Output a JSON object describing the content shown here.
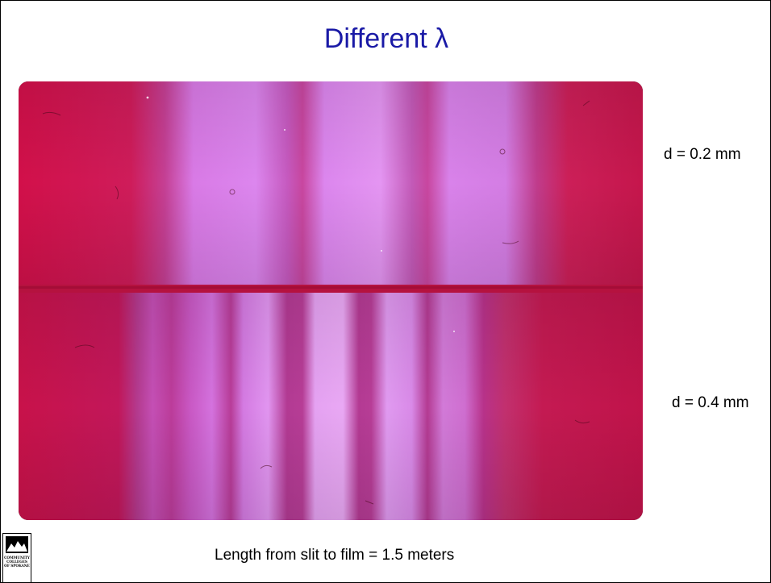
{
  "slide": {
    "title": "Different λ",
    "labels": {
      "top": "d = 0.2 mm",
      "bottom": "d = 0.4 mm"
    },
    "caption": "Length from slit to film = 1.5 meters",
    "logo": {
      "line1": "COMMUNITY",
      "line2": "COLLEGES",
      "line3": "OF SPOKANE"
    }
  },
  "colors": {
    "title": "#1a1aa6",
    "film_background": "#c8174f",
    "fringe": "#d57ae8",
    "fringe_core": "#e6a0f0"
  },
  "icons": {
    "logo": "mountains-logo-icon"
  }
}
